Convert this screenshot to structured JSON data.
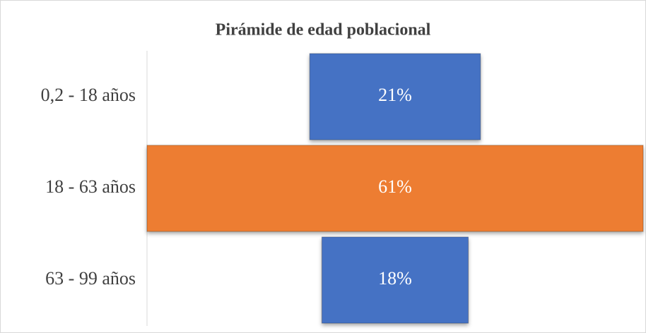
{
  "chart_data": {
    "type": "funnel",
    "title": "Pirámide de edad poblacional",
    "categories": [
      "0,2 - 18 años",
      "18 - 63 años",
      "63 - 99 años"
    ],
    "values": [
      21,
      61,
      18
    ],
    "value_labels": [
      "21%",
      "61%",
      "18%"
    ],
    "colors": [
      "#4472c4",
      "#ed7d31",
      "#4472c4"
    ]
  }
}
